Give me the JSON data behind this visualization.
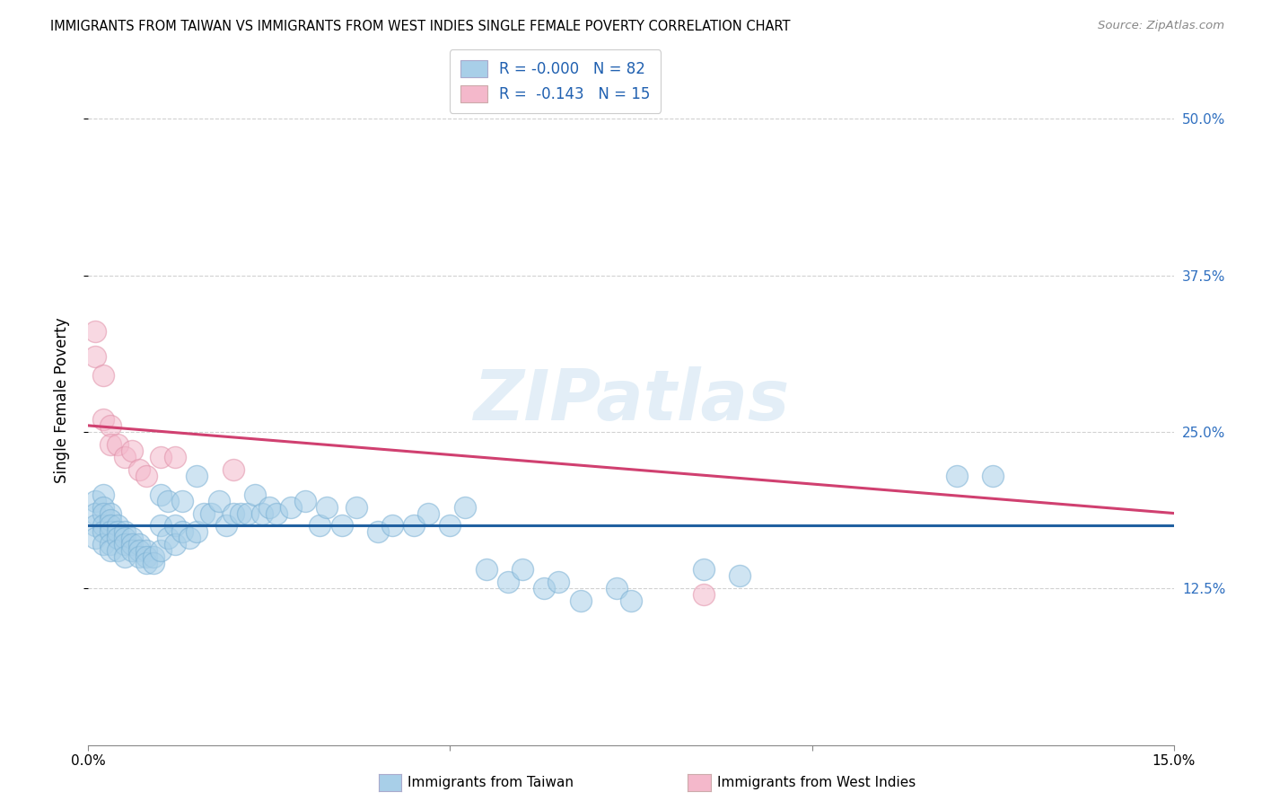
{
  "title": "IMMIGRANTS FROM TAIWAN VS IMMIGRANTS FROM WEST INDIES SINGLE FEMALE POVERTY CORRELATION CHART",
  "source": "Source: ZipAtlas.com",
  "xlabel_blue": "Immigrants from Taiwan",
  "xlabel_pink": "Immigrants from West Indies",
  "ylabel": "Single Female Poverty",
  "xlim": [
    0.0,
    0.15
  ],
  "ylim": [
    0.0,
    0.55
  ],
  "ytick_labels_right": [
    "12.5%",
    "25.0%",
    "37.5%",
    "50.0%"
  ],
  "legend_R_blue": "R = -0.000",
  "legend_N_blue": "N = 82",
  "legend_R_pink": "R =  -0.143",
  "legend_N_pink": "N = 15",
  "color_blue": "#a8cfe8",
  "color_pink": "#f4b8cb",
  "line_color_blue": "#2060a0",
  "line_color_pink": "#d04070",
  "watermark": "ZIPatlas",
  "blue_line_y0": 0.175,
  "blue_line_y1": 0.175,
  "pink_line_y0": 0.255,
  "pink_line_y1": 0.185,
  "taiwan_x": [
    0.001,
    0.001,
    0.001,
    0.001,
    0.002,
    0.002,
    0.002,
    0.002,
    0.002,
    0.002,
    0.003,
    0.003,
    0.003,
    0.003,
    0.003,
    0.003,
    0.004,
    0.004,
    0.004,
    0.004,
    0.005,
    0.005,
    0.005,
    0.005,
    0.006,
    0.006,
    0.006,
    0.007,
    0.007,
    0.007,
    0.008,
    0.008,
    0.008,
    0.009,
    0.009,
    0.01,
    0.01,
    0.01,
    0.011,
    0.011,
    0.012,
    0.012,
    0.013,
    0.013,
    0.014,
    0.015,
    0.015,
    0.016,
    0.017,
    0.018,
    0.019,
    0.02,
    0.021,
    0.022,
    0.023,
    0.024,
    0.025,
    0.026,
    0.028,
    0.03,
    0.032,
    0.033,
    0.035,
    0.037,
    0.04,
    0.042,
    0.045,
    0.047,
    0.05,
    0.052,
    0.055,
    0.058,
    0.06,
    0.063,
    0.065,
    0.068,
    0.073,
    0.075,
    0.085,
    0.09,
    0.12,
    0.125
  ],
  "taiwan_y": [
    0.195,
    0.185,
    0.175,
    0.165,
    0.2,
    0.19,
    0.185,
    0.175,
    0.17,
    0.16,
    0.185,
    0.18,
    0.175,
    0.17,
    0.16,
    0.155,
    0.175,
    0.17,
    0.165,
    0.155,
    0.17,
    0.165,
    0.16,
    0.15,
    0.165,
    0.16,
    0.155,
    0.16,
    0.155,
    0.15,
    0.155,
    0.15,
    0.145,
    0.15,
    0.145,
    0.2,
    0.175,
    0.155,
    0.195,
    0.165,
    0.175,
    0.16,
    0.195,
    0.17,
    0.165,
    0.215,
    0.17,
    0.185,
    0.185,
    0.195,
    0.175,
    0.185,
    0.185,
    0.185,
    0.2,
    0.185,
    0.19,
    0.185,
    0.19,
    0.195,
    0.175,
    0.19,
    0.175,
    0.19,
    0.17,
    0.175,
    0.175,
    0.185,
    0.175,
    0.19,
    0.14,
    0.13,
    0.14,
    0.125,
    0.13,
    0.115,
    0.125,
    0.115,
    0.14,
    0.135,
    0.215,
    0.215
  ],
  "westindies_x": [
    0.001,
    0.001,
    0.002,
    0.002,
    0.003,
    0.003,
    0.004,
    0.005,
    0.006,
    0.007,
    0.008,
    0.01,
    0.012,
    0.02,
    0.085
  ],
  "westindies_y": [
    0.33,
    0.31,
    0.295,
    0.26,
    0.255,
    0.24,
    0.24,
    0.23,
    0.235,
    0.22,
    0.215,
    0.23,
    0.23,
    0.22,
    0.12
  ]
}
